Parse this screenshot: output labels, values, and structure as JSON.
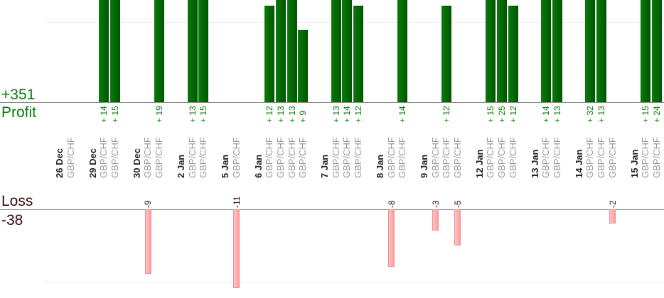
{
  "chart_data": {
    "type": "bar",
    "title": "",
    "profit": {
      "label": "Profit",
      "total": "+351",
      "color": "#0a7a0a"
    },
    "loss": {
      "label": "Loss",
      "total": "-38",
      "color": "#3b0a0a"
    },
    "days": [
      {
        "date": "26 Dec",
        "trades": [
          {
            "pair": "GBP/CHF",
            "value": null
          }
        ]
      },
      {
        "date": "29 Dec",
        "trades": [
          {
            "pair": "GBP/CHF",
            "value": 14
          },
          {
            "pair": "GBP/CHF",
            "value": 15
          }
        ]
      },
      {
        "date": "30 Dec",
        "trades": [
          {
            "pair": "GBP/CHF",
            "value": -9
          },
          {
            "pair": "GBP/CHF",
            "value": 19
          }
        ]
      },
      {
        "date": "2 Jan",
        "trades": [
          {
            "pair": "GBP/CHF",
            "value": 13
          },
          {
            "pair": "GBP/CHF",
            "value": 15
          }
        ]
      },
      {
        "date": "5 Jan",
        "trades": [
          {
            "pair": "GBP/CHF",
            "value": -11
          }
        ]
      },
      {
        "date": "6 Jan",
        "trades": [
          {
            "pair": "GBP/CHF",
            "value": 12
          },
          {
            "pair": "GBP/CHF",
            "value": 13
          },
          {
            "pair": "GBP/CHF",
            "value": 13
          },
          {
            "pair": "GBP/CHF",
            "value": 9
          }
        ]
      },
      {
        "date": "7 Jan",
        "trades": [
          {
            "pair": "GBP/CHF",
            "value": 13
          },
          {
            "pair": "GBP/CHF",
            "value": 14
          },
          {
            "pair": "GBP/CHF",
            "value": 12
          }
        ]
      },
      {
        "date": "8 Jan",
        "trades": [
          {
            "pair": "GBP/CHF",
            "value": -8
          },
          {
            "pair": "GBP/CHF",
            "value": 14
          }
        ]
      },
      {
        "date": "9 Jan",
        "trades": [
          {
            "pair": "GBP/CHF",
            "value": -3
          },
          {
            "pair": "GBP/CHF",
            "value": 12
          },
          {
            "pair": "GBP/CHF",
            "value": -5
          }
        ]
      },
      {
        "date": "12 Jan",
        "trades": [
          {
            "pair": "GBP/CHF",
            "value": 15
          },
          {
            "pair": "GBP/CHF",
            "value": 25
          },
          {
            "pair": "GBP/CHF",
            "value": 12
          }
        ]
      },
      {
        "date": "13 Jan",
        "trades": [
          {
            "pair": "GBP/CHF",
            "value": 14
          },
          {
            "pair": "GBP/CHF",
            "value": 13
          }
        ]
      },
      {
        "date": "14 Jan",
        "trades": [
          {
            "pair": "GBP/CHF",
            "value": 32
          },
          {
            "pair": "GBP/CHF",
            "value": 13
          },
          {
            "pair": "GBP/CHF",
            "value": -2
          }
        ]
      },
      {
        "date": "15 Jan",
        "trades": [
          {
            "pair": "GBP/CHF",
            "value": 15
          },
          {
            "pair": "GBP/CHF",
            "value": 24
          }
        ]
      }
    ]
  }
}
